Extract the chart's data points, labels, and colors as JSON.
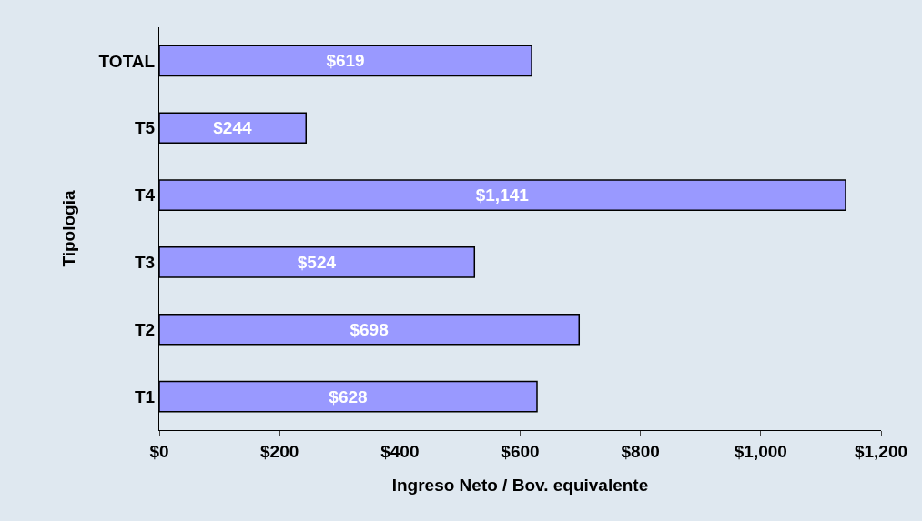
{
  "chart_data": {
    "type": "bar",
    "orientation": "horizontal",
    "xlabel": "Ingreso Neto / Bov. equivalente",
    "ylabel": "Tipologia",
    "categories": [
      "TOTAL",
      "T5",
      "T4",
      "T3",
      "T2",
      "T1"
    ],
    "values": [
      619,
      244,
      1141,
      524,
      698,
      628
    ],
    "value_labels": [
      "$619",
      "$244",
      "$1,141",
      "$524",
      "$698",
      "$628"
    ],
    "color": "#9999ff",
    "xlim": [
      0,
      1200
    ],
    "xticks": [
      {
        "value": 0,
        "label": "$0"
      },
      {
        "value": 200,
        "label": "$200"
      },
      {
        "value": 400,
        "label": "$400"
      },
      {
        "value": 600,
        "label": "$600"
      },
      {
        "value": 800,
        "label": "$800"
      },
      {
        "value": 1000,
        "label": "$1,000"
      },
      {
        "value": 1200,
        "label": "$1,200"
      }
    ],
    "grid": false
  }
}
